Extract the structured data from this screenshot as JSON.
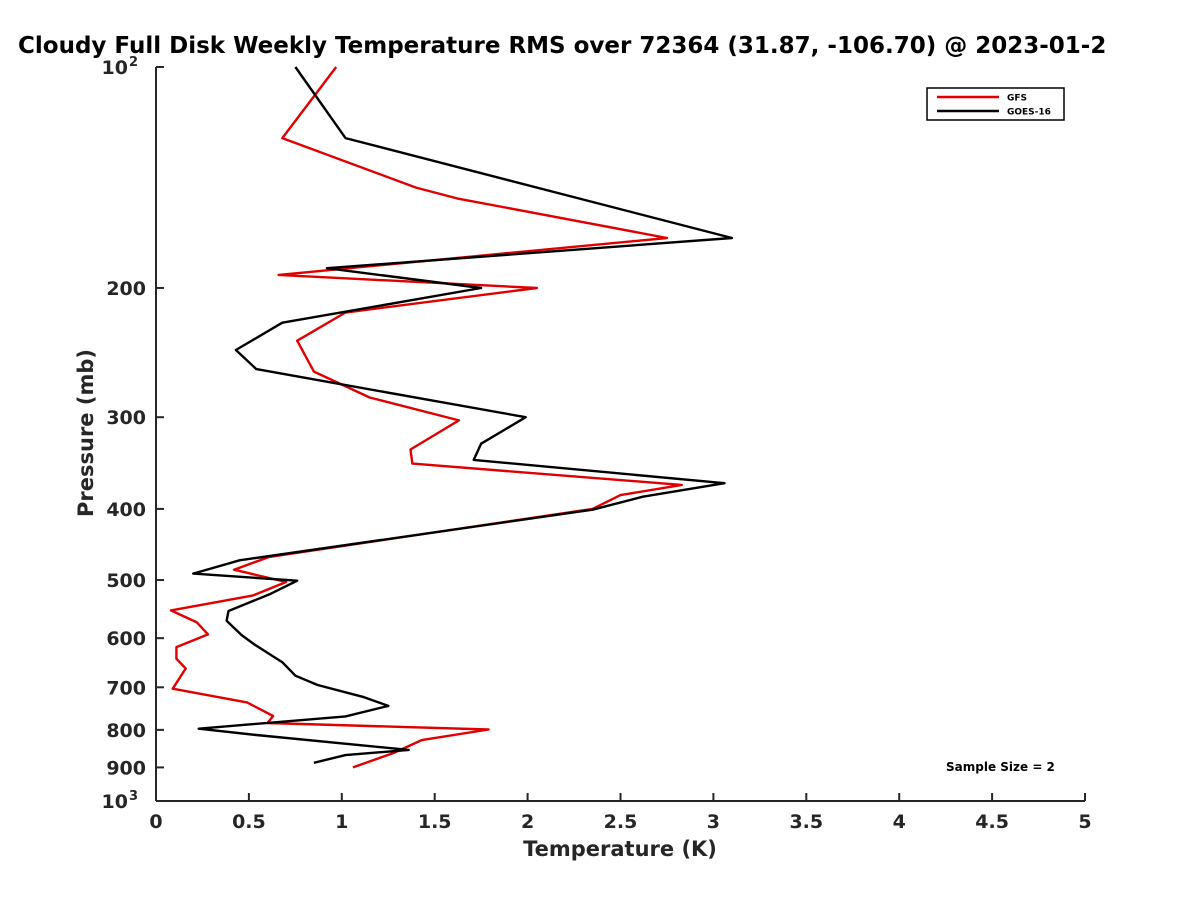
{
  "chart_data": {
    "type": "line",
    "title": "Cloudy Full Disk Weekly Temperature RMS over 72364 (31.87, -106.70) @ 2023-01-2",
    "xlabel": "Temperature (K)",
    "ylabel": "Pressure (mb)",
    "xlim": [
      0,
      5
    ],
    "ylim": [
      100,
      1000
    ],
    "y_scale": "log",
    "y_reversed": true,
    "x_ticks": [
      "0",
      "0.5",
      "1",
      "1.5",
      "2",
      "2.5",
      "3",
      "3.5",
      "4",
      "4.5",
      "5"
    ],
    "y_ticks": [
      {
        "value": 100,
        "base": "10",
        "exp": "2"
      },
      {
        "value": 200,
        "label": "200"
      },
      {
        "value": 300,
        "label": "300"
      },
      {
        "value": 400,
        "label": "400"
      },
      {
        "value": 500,
        "label": "500"
      },
      {
        "value": 600,
        "label": "600"
      },
      {
        "value": 700,
        "label": "700"
      },
      {
        "value": 800,
        "label": "800"
      },
      {
        "value": 900,
        "label": "900"
      },
      {
        "value": 1000,
        "base": "10",
        "exp": "3"
      }
    ],
    "grid": false,
    "legend_position": "top-right",
    "annotation": "Sample Size = 2",
    "series": [
      {
        "name": "GFS",
        "color": "#e00000",
        "points": [
          [
            0.97,
            100
          ],
          [
            0.68,
            125
          ],
          [
            1.4,
            146
          ],
          [
            1.62,
            151
          ],
          [
            2.75,
            171
          ],
          [
            0.66,
            192
          ],
          [
            2.05,
            200
          ],
          [
            1.02,
            216
          ],
          [
            0.76,
            236
          ],
          [
            0.85,
            260
          ],
          [
            1.15,
            282
          ],
          [
            1.63,
            303
          ],
          [
            1.37,
            332
          ],
          [
            1.38,
            347
          ],
          [
            2.83,
            371
          ],
          [
            2.5,
            383
          ],
          [
            2.35,
            400
          ],
          [
            0.61,
            465
          ],
          [
            0.42,
            484
          ],
          [
            0.7,
            503
          ],
          [
            0.52,
            525
          ],
          [
            0.08,
            550
          ],
          [
            0.22,
            571
          ],
          [
            0.28,
            593
          ],
          [
            0.11,
            617
          ],
          [
            0.11,
            640
          ],
          [
            0.16,
            660
          ],
          [
            0.09,
            703
          ],
          [
            0.49,
            734
          ],
          [
            0.63,
            766
          ],
          [
            0.6,
            783
          ],
          [
            1.79,
            799
          ],
          [
            1.43,
            826
          ],
          [
            1.28,
            860
          ],
          [
            1.06,
            900
          ]
        ]
      },
      {
        "name": "GOES-16",
        "color": "#000000",
        "points": [
          [
            0.75,
            100
          ],
          [
            1.02,
            125
          ],
          [
            3.1,
            171
          ],
          [
            0.92,
            188
          ],
          [
            1.75,
            200
          ],
          [
            0.68,
            223
          ],
          [
            0.43,
            243
          ],
          [
            0.54,
            258
          ],
          [
            1.99,
            300
          ],
          [
            1.75,
            326
          ],
          [
            1.71,
            343
          ],
          [
            3.06,
            369
          ],
          [
            2.62,
            385
          ],
          [
            2.35,
            401
          ],
          [
            0.45,
            470
          ],
          [
            0.2,
            490
          ],
          [
            0.76,
            501
          ],
          [
            0.61,
            523
          ],
          [
            0.39,
            551
          ],
          [
            0.38,
            568
          ],
          [
            0.46,
            594
          ],
          [
            0.53,
            612
          ],
          [
            0.68,
            647
          ],
          [
            0.75,
            675
          ],
          [
            0.87,
            695
          ],
          [
            1.12,
            722
          ],
          [
            1.25,
            742
          ],
          [
            1.02,
            767
          ],
          [
            0.23,
            797
          ],
          [
            0.54,
            813
          ],
          [
            1.36,
            852
          ],
          [
            1.02,
            866
          ],
          [
            0.85,
            887
          ]
        ]
      }
    ]
  }
}
